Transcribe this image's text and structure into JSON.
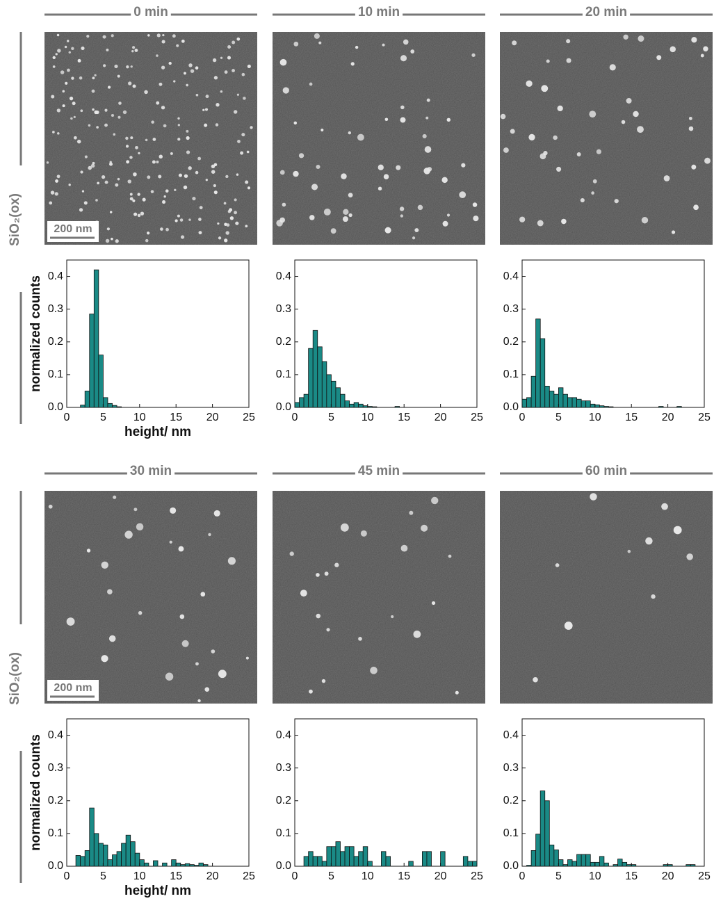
{
  "chart_data": [
    {
      "type": "histogram",
      "title": "0 min",
      "xlabel": "height/ nm",
      "ylabel": "normalized counts",
      "color": "#1a8a86",
      "bins": [
        0,
        0.625,
        1.25,
        1.875,
        2.5,
        3.125,
        3.75,
        4.375,
        5,
        5.625,
        6.25,
        6.875,
        7.5,
        8.125,
        8.75,
        9.375,
        10,
        10.625,
        11.25,
        11.875,
        12.5,
        13.125,
        13.75,
        14.375,
        15,
        15.625,
        16.25,
        16.875,
        17.5,
        18.125,
        18.75,
        19.375,
        20,
        20.625,
        21.25,
        21.875,
        22.5,
        23.125,
        23.75,
        24.375,
        25
      ],
      "values": [
        0,
        0,
        0,
        0.007,
        0.05,
        0.285,
        0.42,
        0.16,
        0.03,
        0.012,
        0.006,
        0.002,
        0,
        0,
        0,
        0,
        0,
        0,
        0,
        0,
        0,
        0,
        0,
        0,
        0,
        0,
        0,
        0,
        0,
        0,
        0,
        0,
        0,
        0,
        0,
        0,
        0,
        0,
        0,
        0
      ],
      "xlim": [
        0,
        25
      ],
      "ylim": [
        0,
        0.45
      ],
      "xticks": [
        0,
        5,
        10,
        15,
        20,
        25
      ],
      "yticks": [
        {
          "value": 0,
          "label": "0.0"
        },
        0.1,
        0.2,
        0.3,
        0.4
      ]
    },
    {
      "type": "histogram",
      "title": "10 min",
      "color": "#1a8a86",
      "bins": [
        0,
        0.625,
        1.25,
        1.875,
        2.5,
        3.125,
        3.75,
        4.375,
        5,
        5.625,
        6.25,
        6.875,
        7.5,
        8.125,
        8.75,
        9.375,
        10,
        10.625,
        11.25,
        11.875,
        12.5,
        13.125,
        13.75,
        14.375,
        15,
        15.625,
        16.25,
        16.875,
        17.5,
        18.125,
        18.75,
        19.375,
        20,
        20.625,
        21.25,
        21.875,
        22.5,
        23.125,
        23.75,
        24.375,
        25
      ],
      "values": [
        0.015,
        0.03,
        0.04,
        0.18,
        0.235,
        0.185,
        0.14,
        0.1,
        0.08,
        0.06,
        0.04,
        0.02,
        0.01,
        0.015,
        0.01,
        0.005,
        0.003,
        0.002,
        0,
        0,
        0,
        0,
        0.003,
        0,
        0,
        0,
        0,
        0,
        0,
        0,
        0,
        0,
        0,
        0,
        0,
        0,
        0,
        0,
        0,
        0
      ],
      "xlim": [
        0,
        25
      ],
      "ylim": [
        0,
        0.45
      ],
      "xticks": [
        0,
        5,
        10,
        15,
        20,
        25
      ],
      "yticks": [
        {
          "value": 0,
          "label": "0.0"
        },
        0.1,
        0.2,
        0.3,
        0.4
      ]
    },
    {
      "type": "histogram",
      "title": "20 min",
      "color": "#1a8a86",
      "bins": [
        0,
        0.625,
        1.25,
        1.875,
        2.5,
        3.125,
        3.75,
        4.375,
        5,
        5.625,
        6.25,
        6.875,
        7.5,
        8.125,
        8.75,
        9.375,
        10,
        10.625,
        11.25,
        11.875,
        12.5,
        13.125,
        13.75,
        14.375,
        15,
        15.625,
        16.25,
        16.875,
        17.5,
        18.125,
        18.75,
        19.375,
        20,
        20.625,
        21.25,
        21.875,
        22.5,
        23.125,
        23.75,
        24.375,
        25
      ],
      "values": [
        0.025,
        0.03,
        0.095,
        0.27,
        0.21,
        0.065,
        0.05,
        0.04,
        0.06,
        0.04,
        0.03,
        0.03,
        0.025,
        0.02,
        0.02,
        0.01,
        0.008,
        0.005,
        0.003,
        0.002,
        0,
        0,
        0,
        0,
        0,
        0,
        0,
        0,
        0,
        0,
        0.003,
        0,
        0,
        0,
        0.003,
        0,
        0,
        0,
        0,
        0
      ],
      "xlim": [
        0,
        25
      ],
      "ylim": [
        0,
        0.45
      ],
      "xticks": [
        0,
        5,
        10,
        15,
        20,
        25
      ],
      "yticks": [
        {
          "value": 0,
          "label": "0.0"
        },
        0.1,
        0.2,
        0.3,
        0.4
      ]
    },
    {
      "type": "histogram",
      "title": "30 min",
      "xlabel": "height/ nm",
      "ylabel": "normalized counts",
      "color": "#1a8a86",
      "bins": [
        0,
        0.625,
        1.25,
        1.875,
        2.5,
        3.125,
        3.75,
        4.375,
        5,
        5.625,
        6.25,
        6.875,
        7.5,
        8.125,
        8.75,
        9.375,
        10,
        10.625,
        11.25,
        11.875,
        12.5,
        13.125,
        13.75,
        14.375,
        15,
        15.625,
        16.25,
        16.875,
        17.5,
        18.125,
        18.75,
        19.375,
        20,
        20.625,
        21.25,
        21.875,
        22.5,
        23.125,
        23.75,
        24.375,
        25
      ],
      "values": [
        0,
        0,
        0.033,
        0.03,
        0.048,
        0.178,
        0.1,
        0.07,
        0.065,
        0.02,
        0.035,
        0.045,
        0.07,
        0.095,
        0.075,
        0.04,
        0.02,
        0.01,
        0,
        0.017,
        0,
        0.01,
        0,
        0.02,
        0.01,
        0.005,
        0.008,
        0.005,
        0.003,
        0.01,
        0.005,
        0,
        0,
        0,
        0,
        0,
        0,
        0,
        0,
        0
      ],
      "xlim": [
        0,
        25
      ],
      "ylim": [
        0,
        0.45
      ],
      "xticks": [
        0,
        5,
        10,
        15,
        20,
        25
      ],
      "yticks": [
        {
          "value": 0,
          "label": "0.0"
        },
        0.1,
        0.2,
        0.3,
        0.4
      ]
    },
    {
      "type": "histogram",
      "title": "45 min",
      "color": "#1a8a86",
      "bins": [
        0,
        0.625,
        1.25,
        1.875,
        2.5,
        3.125,
        3.75,
        4.375,
        5,
        5.625,
        6.25,
        6.875,
        7.5,
        8.125,
        8.75,
        9.375,
        10,
        10.625,
        11.25,
        11.875,
        12.5,
        13.125,
        13.75,
        14.375,
        15,
        15.625,
        16.25,
        16.875,
        17.5,
        18.125,
        18.75,
        19.375,
        20,
        20.625,
        21.25,
        21.875,
        22.5,
        23.125,
        23.75,
        24.375,
        25
      ],
      "values": [
        0,
        0,
        0.03,
        0.045,
        0.03,
        0.03,
        0.015,
        0.06,
        0.06,
        0.075,
        0.045,
        0.06,
        0.06,
        0.03,
        0.045,
        0.06,
        0.015,
        0,
        0,
        0.045,
        0.03,
        0,
        0,
        0,
        0,
        0.015,
        0,
        0,
        0.045,
        0.045,
        0,
        0,
        0.045,
        0,
        0,
        0,
        0,
        0.03,
        0.015,
        0.015
      ],
      "xlim": [
        0,
        25
      ],
      "ylim": [
        0,
        0.45
      ],
      "xticks": [
        0,
        5,
        10,
        15,
        20,
        25
      ],
      "yticks": [
        {
          "value": 0,
          "label": "0.0"
        },
        0.1,
        0.2,
        0.3,
        0.4
      ]
    },
    {
      "type": "histogram",
      "title": "60 min",
      "color": "#1a8a86",
      "bins": [
        0,
        0.625,
        1.25,
        1.875,
        2.5,
        3.125,
        3.75,
        4.375,
        5,
        5.625,
        6.25,
        6.875,
        7.5,
        8.125,
        8.75,
        9.375,
        10,
        10.625,
        11.25,
        11.875,
        12.5,
        13.125,
        13.75,
        14.375,
        15,
        15.625,
        16.25,
        16.875,
        17.5,
        18.125,
        18.75,
        19.375,
        20,
        20.625,
        21.25,
        21.875,
        22.5,
        23.125,
        23.75,
        24.375,
        25
      ],
      "values": [
        0,
        0.003,
        0.048,
        0.098,
        0.23,
        0.2,
        0.065,
        0.05,
        0.02,
        0.005,
        0.02,
        0.015,
        0.036,
        0.036,
        0.036,
        0.012,
        0.012,
        0.03,
        0.01,
        0,
        0.005,
        0.022,
        0.012,
        0.005,
        0.005,
        0,
        0,
        0,
        0,
        0,
        0,
        0.005,
        0.005,
        0,
        0,
        0,
        0.005,
        0.005,
        0,
        0
      ],
      "xlim": [
        0,
        25
      ],
      "ylim": [
        0,
        0.45
      ],
      "xticks": [
        0,
        5,
        10,
        15,
        20,
        25
      ],
      "yticks": [
        {
          "value": 0,
          "label": "0.0"
        },
        0.1,
        0.2,
        0.3,
        0.4
      ]
    }
  ],
  "panels": [
    {
      "sample": "SiO₂(ox)",
      "scale_bar": "200 nm"
    },
    {
      "sample": "SiO₂(ox)",
      "scale_bar": "200 nm"
    }
  ]
}
